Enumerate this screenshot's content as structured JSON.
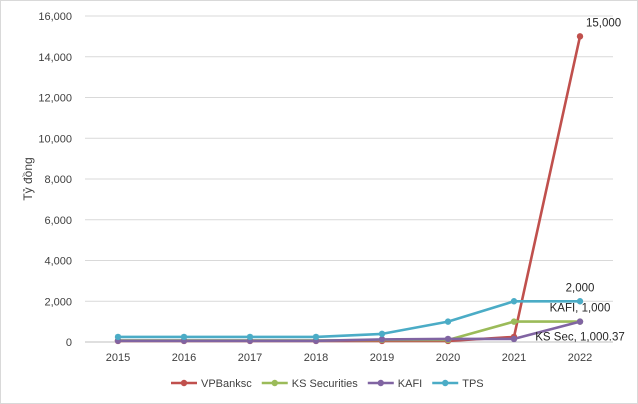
{
  "chart_data": {
    "type": "line",
    "title": "",
    "xlabel": "",
    "ylabel": "Tỷ đồng",
    "x": [
      "2015",
      "2016",
      "2017",
      "2018",
      "2019",
      "2020",
      "2021",
      "2022"
    ],
    "ylim": [
      0,
      16000
    ],
    "yticks": [
      0,
      2000,
      4000,
      6000,
      8000,
      10000,
      12000,
      14000,
      16000
    ],
    "ytick_labels": [
      "0",
      "2,000",
      "4,000",
      "6,000",
      "8,000",
      "10,000",
      "12,000",
      "14,000",
      "16,000"
    ],
    "grid": "horizontal",
    "legend_position": "bottom",
    "series": [
      {
        "name": "VPBanksc",
        "color": "#c0504d",
        "values": [
          50,
          50,
          50,
          50,
          50,
          50,
          250,
          15000
        ]
      },
      {
        "name": "KS Securities",
        "color": "#9bbb59",
        "values": [
          80,
          80,
          80,
          80,
          100,
          100,
          1000,
          1000.37
        ]
      },
      {
        "name": "KAFI",
        "color": "#8064a2",
        "values": [
          60,
          60,
          60,
          60,
          130,
          150,
          150,
          1000
        ]
      },
      {
        "name": "TPS",
        "color": "#4bacc6",
        "values": [
          250,
          250,
          250,
          250,
          400,
          1000,
          2000,
          2000
        ]
      }
    ],
    "annotations": [
      {
        "series": "VPBanksc",
        "x": "2022",
        "text": "15,000",
        "anchor": "above-right"
      },
      {
        "series": "TPS",
        "x": "2022",
        "text": "2,000",
        "anchor": "above"
      },
      {
        "series": "KAFI",
        "x": "2022",
        "text": "KAFI, 1,000",
        "anchor": "above"
      },
      {
        "series": "KS Securities",
        "x": "2022",
        "text": "KS Sec, 1,000.37",
        "anchor": "below"
      }
    ]
  }
}
